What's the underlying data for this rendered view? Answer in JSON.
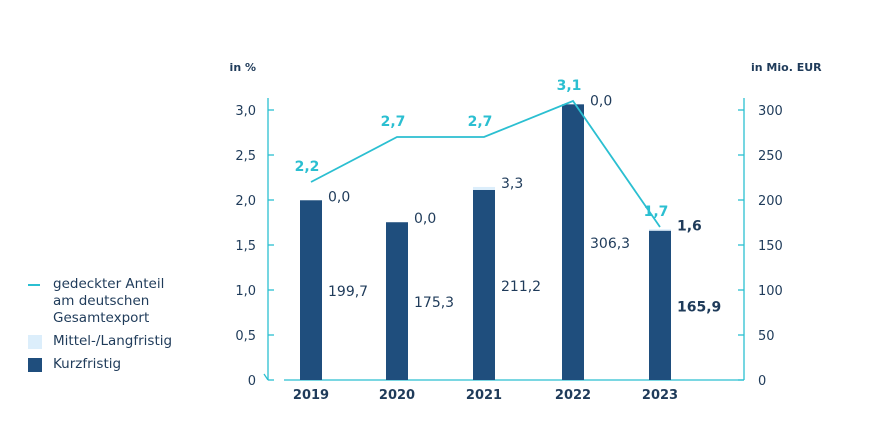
{
  "chart_data": {
    "type": "bar",
    "categories": [
      "2019",
      "2020",
      "2021",
      "2022",
      "2023"
    ],
    "left_axis": {
      "unit": "in %",
      "ticks": [
        "0",
        "0,5",
        "1,0",
        "1,5",
        "2,0",
        "2,5",
        "3,0"
      ],
      "range": [
        0,
        3.5
      ]
    },
    "right_axis": {
      "unit": "in Mio. EUR",
      "ticks": [
        "0",
        "50",
        "100",
        "150",
        "200",
        "250",
        "300"
      ],
      "range": [
        0,
        350
      ]
    },
    "series": [
      {
        "name": "Kurzfristig",
        "axis": "right",
        "values": [
          199.7,
          175.3,
          211.2,
          306.3,
          165.9
        ],
        "labels": [
          "199,7",
          "175,3",
          "211,2",
          "306,3",
          "165,9"
        ],
        "color": "#1f4e7d"
      },
      {
        "name": "Mittel-/Langfristig",
        "axis": "right",
        "values": [
          0.0,
          0.0,
          3.3,
          0.0,
          1.6
        ],
        "labels": [
          "0,0",
          "0,0",
          "3,3",
          "0,0",
          "1,6"
        ],
        "color": "#dceefb"
      },
      {
        "name": "gedeckter Anteil\nam deutschen\nGesamtexport",
        "type": "line",
        "axis": "left",
        "values": [
          2.2,
          2.7,
          2.7,
          3.1,
          1.7
        ],
        "labels": [
          "2,2",
          "2,7",
          "2,7",
          "3,1",
          "1,7"
        ],
        "color": "#2bbfd1"
      }
    ],
    "legend_position": "left"
  },
  "legend": [
    {
      "label": "gedeckter Anteil\nam deutschen\nGesamtexport",
      "kind": "line",
      "color": "#2bbfd1"
    },
    {
      "label": "Mittel-/Langfristig",
      "kind": "box",
      "color": "#dceefb"
    },
    {
      "label": "Kurzfristig",
      "kind": "box",
      "color": "#1f4e7d"
    }
  ]
}
